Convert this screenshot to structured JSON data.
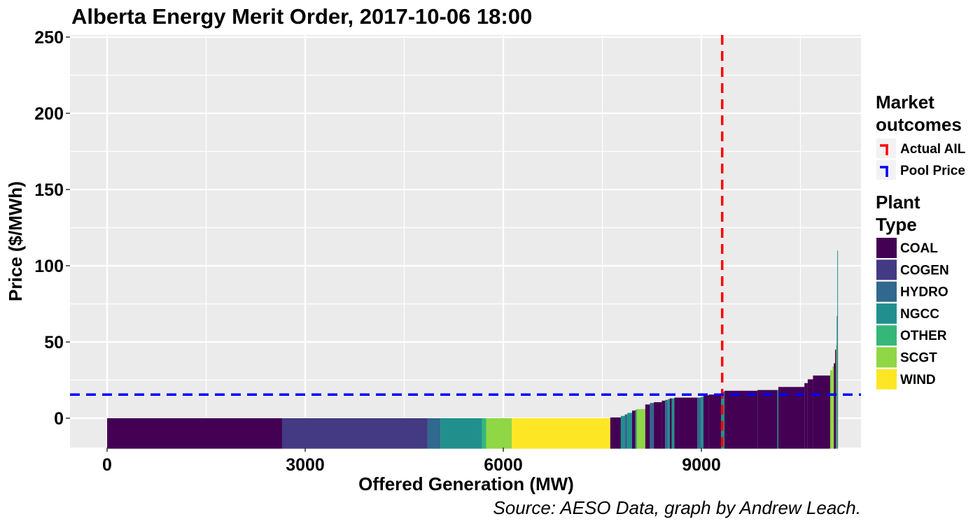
{
  "chart_data": {
    "type": "bar",
    "title": "Alberta Energy Merit Order, 2017-10-06 18:00",
    "xlabel": "Offered Generation (MW)",
    "ylabel": "Price ($/MWh)",
    "caption": "Source: AESO Data, graph by Andrew Leach.",
    "xlim": [
      -500,
      12100
    ],
    "ylim": [
      -20,
      250
    ],
    "x_ticks": [
      0,
      3000,
      6000,
      9000
    ],
    "y_ticks": [
      0,
      50,
      100,
      150,
      200,
      250
    ],
    "grid": true,
    "legend_position": "right",
    "plant_types": [
      {
        "name": "COAL",
        "color": "#440154"
      },
      {
        "name": "COGEN",
        "color": "#443A83"
      },
      {
        "name": "HYDRO",
        "color": "#31688E"
      },
      {
        "name": "NGCC",
        "color": "#21908C"
      },
      {
        "name": "OTHER",
        "color": "#35B779"
      },
      {
        "name": "SCGT",
        "color": "#8FD744"
      },
      {
        "name": "WIND",
        "color": "#FDE725"
      }
    ],
    "market_outcomes": [
      {
        "name": "Actual AIL",
        "color": "#FF0000",
        "orientation": "vertical",
        "value": 9315
      },
      {
        "name": "Pool Price",
        "color": "#0000FF",
        "orientation": "horizontal",
        "value": 15.5
      }
    ],
    "offers": [
      {
        "x0": 0,
        "x1": 2650,
        "price": 0,
        "type": "COAL"
      },
      {
        "x0": 2650,
        "x1": 4850,
        "price": 0,
        "type": "COGEN"
      },
      {
        "x0": 4850,
        "x1": 5050,
        "price": 0,
        "type": "HYDRO"
      },
      {
        "x0": 5050,
        "x1": 5680,
        "price": 0,
        "type": "NGCC"
      },
      {
        "x0": 5680,
        "x1": 5740,
        "price": 0,
        "type": "OTHER"
      },
      {
        "x0": 5740,
        "x1": 6130,
        "price": 0,
        "type": "SCGT"
      },
      {
        "x0": 6130,
        "x1": 7620,
        "price": 0,
        "type": "WIND"
      },
      {
        "x0": 7620,
        "x1": 7780,
        "price": 0.5,
        "type": "COAL"
      },
      {
        "x0": 7780,
        "x1": 7840,
        "price": 1.5,
        "type": "NGCC"
      },
      {
        "x0": 7840,
        "x1": 7880,
        "price": 2.5,
        "type": "HYDRO"
      },
      {
        "x0": 7880,
        "x1": 7950,
        "price": 3.5,
        "type": "NGCC"
      },
      {
        "x0": 7950,
        "x1": 8000,
        "price": 5,
        "type": "COAL"
      },
      {
        "x0": 8000,
        "x1": 8020,
        "price": 5.5,
        "type": "NGCC"
      },
      {
        "x0": 8020,
        "x1": 8150,
        "price": 6,
        "type": "SCGT"
      },
      {
        "x0": 8150,
        "x1": 8220,
        "price": 9,
        "type": "COAL"
      },
      {
        "x0": 8220,
        "x1": 8280,
        "price": 10,
        "type": "HYDRO"
      },
      {
        "x0": 8280,
        "x1": 8400,
        "price": 10.5,
        "type": "COAL"
      },
      {
        "x0": 8400,
        "x1": 8450,
        "price": 11.5,
        "type": "COAL"
      },
      {
        "x0": 8450,
        "x1": 8490,
        "price": 12,
        "type": "HYDRO"
      },
      {
        "x0": 8490,
        "x1": 8520,
        "price": 12.5,
        "type": "NGCC"
      },
      {
        "x0": 8520,
        "x1": 8550,
        "price": 13,
        "type": "COAL"
      },
      {
        "x0": 8550,
        "x1": 8590,
        "price": 13,
        "type": "NGCC"
      },
      {
        "x0": 8590,
        "x1": 8940,
        "price": 13.5,
        "type": "COAL"
      },
      {
        "x0": 8940,
        "x1": 8990,
        "price": 13.5,
        "type": "HYDRO"
      },
      {
        "x0": 8990,
        "x1": 9030,
        "price": 14,
        "type": "NGCC"
      },
      {
        "x0": 9030,
        "x1": 9110,
        "price": 15,
        "type": "COAL"
      },
      {
        "x0": 9110,
        "x1": 9300,
        "price": 15.5,
        "type": "COAL"
      },
      {
        "x0": 9300,
        "x1": 9350,
        "price": 17.5,
        "type": "NGCC"
      },
      {
        "x0": 9350,
        "x1": 9850,
        "price": 18,
        "type": "COAL"
      },
      {
        "x0": 9850,
        "x1": 10150,
        "price": 18.5,
        "type": "COAL"
      },
      {
        "x0": 10150,
        "x1": 10165,
        "price": 18.5,
        "type": "NGCC"
      },
      {
        "x0": 10165,
        "x1": 10560,
        "price": 20.5,
        "type": "COAL"
      },
      {
        "x0": 10560,
        "x1": 10610,
        "price": 23,
        "type": "COAL"
      },
      {
        "x0": 10610,
        "x1": 10690,
        "price": 25.5,
        "type": "COAL"
      },
      {
        "x0": 10690,
        "x1": 10950,
        "price": 28,
        "type": "COAL"
      },
      {
        "x0": 10950,
        "x1": 10985,
        "price": 31.5,
        "type": "SCGT"
      },
      {
        "x0": 10985,
        "x1": 11005,
        "price": 34,
        "type": "SCGT"
      },
      {
        "x0": 11005,
        "x1": 11025,
        "price": 36,
        "type": "COAL"
      },
      {
        "x0": 11025,
        "x1": 11040,
        "price": 45,
        "type": "COAL"
      },
      {
        "x0": 11040,
        "x1": 11050,
        "price": 48,
        "type": "SCGT"
      },
      {
        "x0": 11050,
        "x1": 11058,
        "price": 67,
        "type": "HYDRO"
      },
      {
        "x0": 11058,
        "x1": 11066,
        "price": 110,
        "type": "NGCC"
      }
    ]
  },
  "legend": {
    "outcomes_title_line1": "Market",
    "outcomes_title_line2": "outcomes",
    "plant_title_line1": "Plant",
    "plant_title_line2": "Type"
  },
  "colors": {
    "panel_background": "#EBEBEB",
    "grid": "#FFFFFF",
    "text": "#000000"
  }
}
